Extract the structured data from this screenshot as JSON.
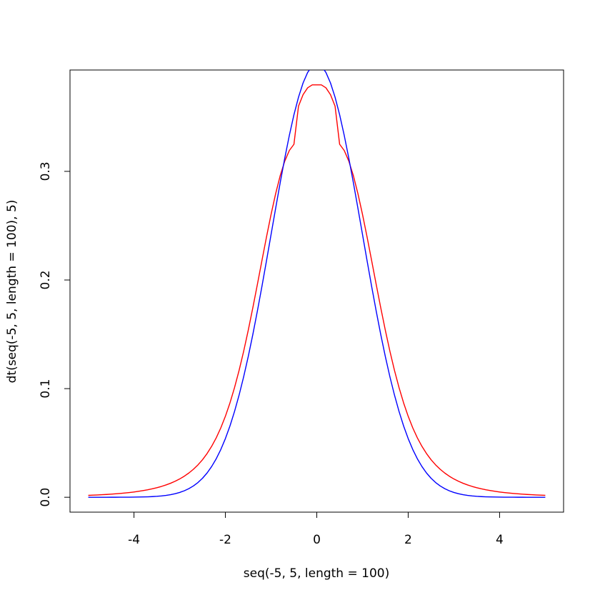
{
  "chart_data": {
    "type": "line",
    "title": "",
    "xlabel": "seq(-5, 5, length = 100)",
    "ylabel": "dt(seq(-5, 5, length = 100), 5)",
    "xlim": [
      -5.4,
      5.4
    ],
    "ylim": [
      -0.0137,
      0.3933
    ],
    "x_ticks": [
      -4,
      -2,
      0,
      2,
      4
    ],
    "y_ticks": [
      0.0,
      0.1,
      0.2,
      0.3
    ],
    "x_tick_labels": [
      "-4",
      "-2",
      "0",
      "2",
      "4"
    ],
    "y_tick_labels": [
      "0.0",
      "0.1",
      "0.2",
      "0.3"
    ],
    "grid": false,
    "legend": "none",
    "x": [
      -5.0,
      -4.9,
      -4.8,
      -4.7,
      -4.6,
      -4.5,
      -4.4,
      -4.3,
      -4.2,
      -4.1,
      -4.0,
      -3.9,
      -3.8,
      -3.7,
      -3.6,
      -3.5,
      -3.4,
      -3.3,
      -3.2,
      -3.1,
      -3.0,
      -2.9,
      -2.8,
      -2.7,
      -2.6,
      -2.5,
      -2.4,
      -2.3,
      -2.2,
      -2.1,
      -2.0,
      -1.9,
      -1.8,
      -1.7,
      -1.6,
      -1.5,
      -1.4,
      -1.3,
      -1.2,
      -1.1,
      -1.0,
      -0.9,
      -0.8,
      -0.7,
      -0.6,
      -0.5,
      -0.4,
      -0.3,
      -0.2,
      -0.1,
      0.0,
      0.1,
      0.2,
      0.3,
      0.4,
      0.5,
      0.6,
      0.7,
      0.8,
      0.9,
      1.0,
      1.1,
      1.2,
      1.3,
      1.4,
      1.5,
      1.6,
      1.7,
      1.8,
      1.9,
      2.0,
      2.1,
      2.2,
      2.3,
      2.4,
      2.5,
      2.6,
      2.7,
      2.8,
      2.9,
      3.0,
      3.1,
      3.2,
      3.3,
      3.4,
      3.5,
      3.6,
      3.7,
      3.8,
      3.9,
      4.0,
      4.1,
      4.2,
      4.3,
      4.4,
      4.5,
      4.6,
      4.7,
      4.8,
      4.9,
      5.0
    ],
    "series": [
      {
        "color": "#ff0000",
        "values": [
          0.00176,
          0.00193,
          0.00212,
          0.00234,
          0.00258,
          0.00285,
          0.00316,
          0.00351,
          0.00391,
          0.00436,
          0.00487,
          0.00546,
          0.00613,
          0.00689,
          0.00777,
          0.00879,
          0.00996,
          0.01131,
          0.01288,
          0.01471,
          0.01685,
          0.01935,
          0.02229,
          0.02574,
          0.02981,
          0.03461,
          0.04026,
          0.04692,
          0.05474,
          0.06389,
          0.07454,
          0.08683,
          0.1009,
          0.11677,
          0.13441,
          0.15369,
          0.17432,
          0.1959,
          0.2179,
          0.23966,
          0.26045,
          0.27951,
          0.2961,
          0.30952,
          0.31924,
          0.32492,
          0.36,
          0.37058,
          0.37691,
          0.37961,
          0.37961,
          0.37961,
          0.37691,
          0.37058,
          0.36,
          0.32492,
          0.31924,
          0.30952,
          0.2961,
          0.27951,
          0.26045,
          0.23966,
          0.2179,
          0.1959,
          0.17432,
          0.15369,
          0.13441,
          0.11677,
          0.1009,
          0.08683,
          0.07454,
          0.06389,
          0.05474,
          0.04692,
          0.04026,
          0.03461,
          0.02981,
          0.02574,
          0.02229,
          0.01935,
          0.01685,
          0.01471,
          0.01288,
          0.01131,
          0.00996,
          0.00879,
          0.00777,
          0.00689,
          0.00613,
          0.00546,
          0.00487,
          0.00436,
          0.00391,
          0.00351,
          0.00316,
          0.00285,
          0.00258,
          0.00234,
          0.00212,
          0.00193,
          0.00176
        ]
      },
      {
        "color": "#0000ff",
        "values": [
          0.0,
          0.0,
          0.0,
          1e-05,
          1e-05,
          2e-05,
          2e-05,
          4e-05,
          6e-05,
          9e-05,
          0.00013,
          0.0002,
          0.00029,
          0.00042,
          0.00061,
          0.00087,
          0.00123,
          0.00172,
          0.00238,
          0.00327,
          0.00443,
          0.00595,
          0.00792,
          0.01042,
          0.01358,
          0.01753,
          0.02239,
          0.02833,
          0.03547,
          0.04398,
          0.05399,
          0.06562,
          0.07895,
          0.09405,
          0.11092,
          0.12952,
          0.14973,
          0.17137,
          0.19419,
          0.21785,
          0.24197,
          0.26609,
          0.28969,
          0.31225,
          0.33322,
          0.35207,
          0.36827,
          0.38139,
          0.39104,
          0.39695,
          0.39894,
          0.39695,
          0.39104,
          0.38139,
          0.36827,
          0.35207,
          0.33322,
          0.31225,
          0.28969,
          0.26609,
          0.24197,
          0.21785,
          0.19419,
          0.17137,
          0.14973,
          0.12952,
          0.11092,
          0.09405,
          0.07895,
          0.06562,
          0.05399,
          0.04398,
          0.03547,
          0.02833,
          0.02239,
          0.01753,
          0.01358,
          0.01042,
          0.00792,
          0.00595,
          0.00443,
          0.00327,
          0.00238,
          0.00172,
          0.00123,
          0.00087,
          0.00061,
          0.00042,
          0.00029,
          0.0002,
          0.00013,
          9e-05,
          6e-05,
          4e-05,
          2e-05,
          2e-05,
          1e-05,
          1e-05,
          0.0,
          0.0,
          0.0
        ]
      }
    ]
  }
}
